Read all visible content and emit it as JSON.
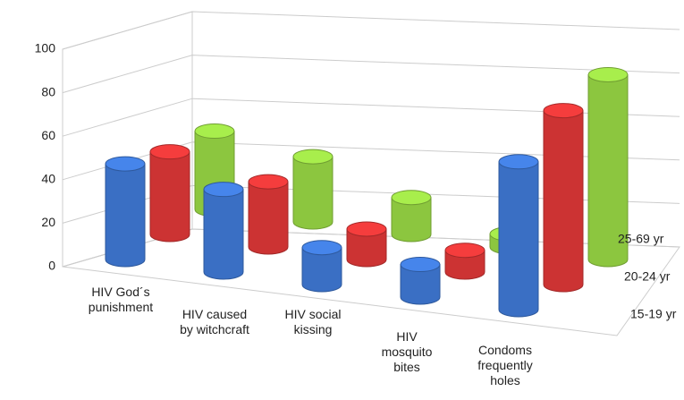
{
  "chart_data": {
    "type": "bar3d",
    "categories": [
      "HIV God´s\npunishment",
      "HIV caused\nby witchcraft",
      "HIV social\nkissing",
      "HIV\nmosquito\nbites",
      "Condoms\nfrequently\nholes"
    ],
    "series": [
      {
        "name": "15-19 yr",
        "color": "#3a6fc4",
        "values": [
          44,
          38,
          17,
          15,
          68
        ]
      },
      {
        "name": "20-24 yr",
        "color": "#cc3333",
        "values": [
          38,
          30,
          14,
          10,
          80
        ]
      },
      {
        "name": "25-69 yr",
        "color": "#8cc63f",
        "values": [
          36,
          30,
          17,
          6,
          85
        ]
      }
    ],
    "ylim": [
      0,
      100
    ],
    "yticks": [
      0,
      20,
      40,
      60,
      80,
      100
    ],
    "grid": true
  }
}
